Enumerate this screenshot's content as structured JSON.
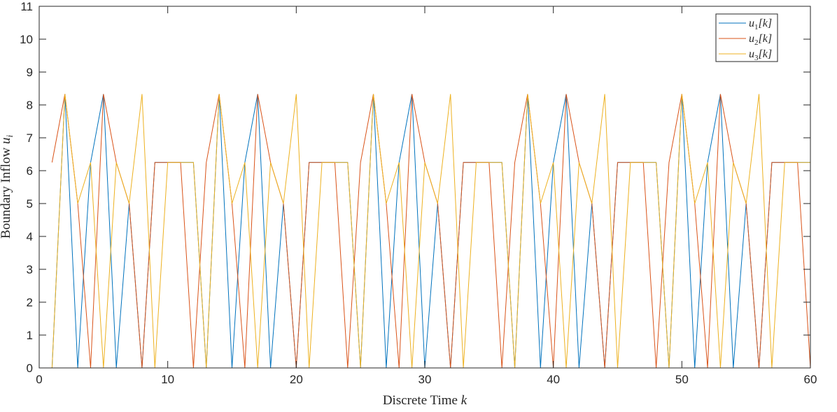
{
  "chart_data": {
    "type": "line",
    "xlabel": "Discrete Time",
    "xlabel_var": "k",
    "ylabel": "Boundary Inflow",
    "ylabel_var": "u",
    "ylabel_sub": "i",
    "xlim": [
      0,
      60
    ],
    "ylim": [
      0,
      11
    ],
    "xticks": [
      0,
      10,
      20,
      30,
      40,
      50,
      60
    ],
    "yticks": [
      0,
      1,
      2,
      3,
      4,
      5,
      6,
      7,
      8,
      9,
      10,
      11
    ],
    "grid": false,
    "legend_position": "top-right",
    "x": [
      1,
      2,
      3,
      4,
      5,
      6,
      7,
      8,
      9,
      10,
      11,
      12,
      13,
      14,
      15,
      16,
      17,
      18,
      19,
      20,
      21,
      22,
      23,
      24,
      25,
      26,
      27,
      28,
      29,
      30,
      31,
      32,
      33,
      34,
      35,
      36,
      37,
      38,
      39,
      40,
      41,
      42,
      43,
      44,
      45,
      46,
      47,
      48,
      49,
      50,
      51,
      52,
      53,
      54,
      55,
      56,
      57,
      58,
      59,
      60
    ],
    "series": [
      {
        "name": "u1[k]",
        "base": "u",
        "sub": "1",
        "arg": "[k]",
        "color": "#0072BD",
        "values": [
          0,
          8.33,
          0,
          6.25,
          8.33,
          0,
          5,
          0,
          6.25,
          6.25,
          6.25,
          6.25,
          0,
          8.33,
          0,
          6.25,
          8.33,
          0,
          5,
          0,
          6.25,
          6.25,
          6.25,
          6.25,
          0,
          8.33,
          0,
          6.25,
          8.33,
          0,
          5,
          0,
          6.25,
          6.25,
          6.25,
          6.25,
          0,
          8.33,
          0,
          6.25,
          8.33,
          0,
          5,
          0,
          6.25,
          6.25,
          6.25,
          6.25,
          0,
          8.33,
          0,
          6.25,
          8.33,
          0,
          5,
          0,
          6.25,
          6.25,
          6.25,
          6.25
        ]
      },
      {
        "name": "u2[k]",
        "base": "u",
        "sub": "2",
        "arg": "[k]",
        "color": "#D95319",
        "values": [
          6.25,
          8.33,
          5,
          0,
          8.33,
          6.25,
          5,
          0,
          6.25,
          6.25,
          6.25,
          0,
          6.25,
          8.33,
          5,
          0,
          8.33,
          6.25,
          5,
          0,
          6.25,
          6.25,
          6.25,
          0,
          6.25,
          8.33,
          5,
          0,
          8.33,
          6.25,
          5,
          0,
          6.25,
          6.25,
          6.25,
          0,
          6.25,
          8.33,
          5,
          0,
          8.33,
          6.25,
          5,
          0,
          6.25,
          6.25,
          6.25,
          0,
          6.25,
          8.33,
          5,
          0,
          8.33,
          6.25,
          5,
          0,
          6.25,
          6.25,
          6.25,
          0
        ]
      },
      {
        "name": "u3[k]",
        "base": "u",
        "sub": "3",
        "arg": "[k]",
        "color": "#EDB120",
        "values": [
          0,
          8.33,
          5,
          6.25,
          0,
          6.25,
          5,
          8.33,
          0,
          6.25,
          6.25,
          6.25,
          0,
          8.33,
          5,
          6.25,
          0,
          6.25,
          5,
          8.33,
          0,
          6.25,
          6.25,
          6.25,
          0,
          8.33,
          5,
          6.25,
          0,
          6.25,
          5,
          8.33,
          0,
          6.25,
          6.25,
          6.25,
          0,
          8.33,
          5,
          6.25,
          0,
          6.25,
          5,
          8.33,
          0,
          6.25,
          6.25,
          6.25,
          0,
          8.33,
          5,
          6.25,
          0,
          6.25,
          5,
          8.33,
          0,
          6.25,
          6.25,
          6.25
        ]
      }
    ]
  }
}
